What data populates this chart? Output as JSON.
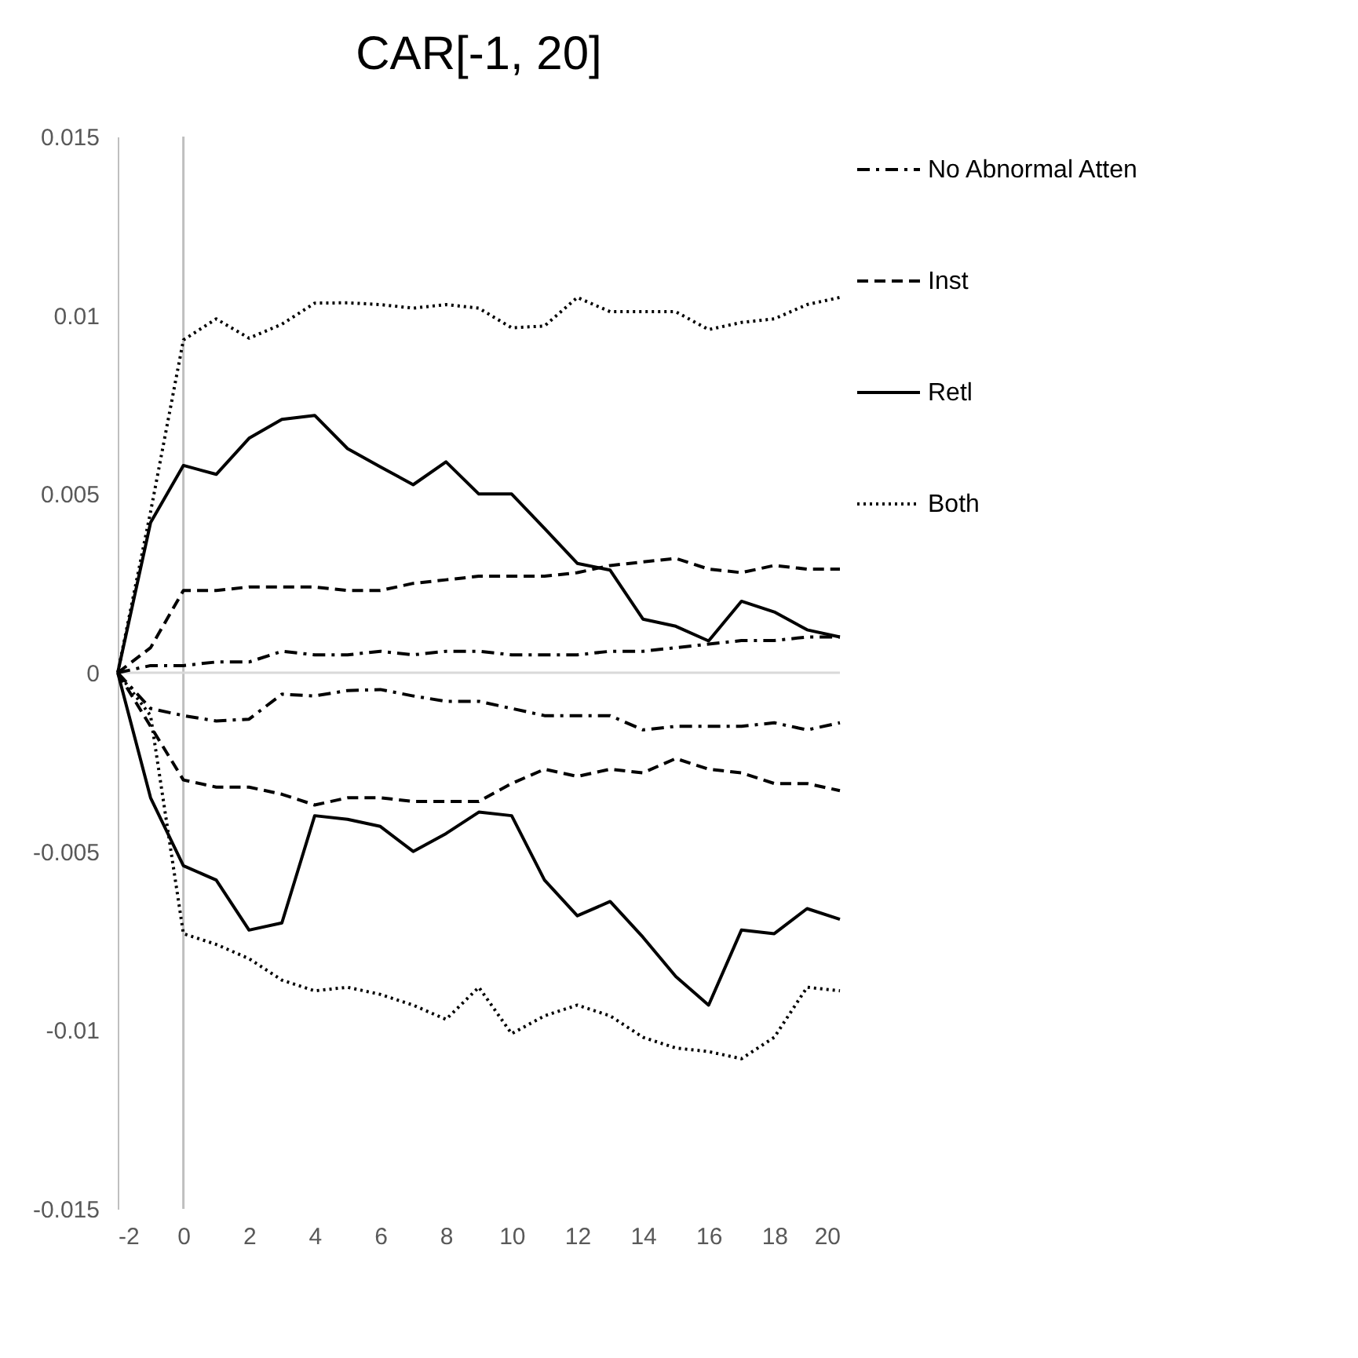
{
  "chart_data": {
    "type": "line",
    "title": "CAR[-1, 20]",
    "x": [
      -2,
      -1,
      0,
      1,
      2,
      3,
      4,
      5,
      6,
      7,
      8,
      9,
      10,
      11,
      12,
      13,
      14,
      15,
      16,
      17,
      18,
      19,
      20
    ],
    "xlim": [
      -2,
      20
    ],
    "xticks": [
      -2,
      0,
      2,
      4,
      6,
      8,
      10,
      12,
      14,
      16,
      18,
      20
    ],
    "ylim": [
      -0.015,
      0.015
    ],
    "yticks": [
      -0.015,
      -0.01,
      -0.005,
      0,
      0.005,
      0.01,
      0.015
    ],
    "grid": false,
    "legend": "right",
    "marker": "none",
    "ref_lines": [
      {
        "axis": "x",
        "value": 0,
        "color": "#bfbfbf"
      },
      {
        "axis": "y",
        "value": 0,
        "color": "#d9d9d9"
      }
    ],
    "series": [
      {
        "name": "No Abnormal Atten",
        "color": "#000000",
        "line_style": "dashdot",
        "values": [
          0,
          0.0002,
          0.0002,
          0.0003,
          0.0003,
          0.0006,
          0.0005,
          0.0005,
          0.0006,
          0.0005,
          0.0006,
          0.0006,
          0.0005,
          0.0005,
          0.0005,
          0.0006,
          0.0006,
          0.0007,
          0.0008,
          0.0009,
          0.0009,
          0.001,
          0.001
        ]
      },
      {
        "color": "#000000",
        "line_style": "dashdot",
        "values": [
          0,
          -0.001,
          -0.0012,
          -0.00135,
          -0.0013,
          -0.0006,
          -0.00065,
          -0.0005,
          -0.00047,
          -0.00065,
          -0.0008,
          -0.0008,
          -0.001,
          -0.0012,
          -0.0012,
          -0.0012,
          -0.0016,
          -0.0015,
          -0.0015,
          -0.0015,
          -0.0014,
          -0.0016,
          -0.0014
        ]
      },
      {
        "name": "Inst",
        "color": "#000000",
        "line_style": "dashed",
        "values": [
          0,
          0.0007,
          0.0023,
          0.0023,
          0.0024,
          0.0024,
          0.0024,
          0.0023,
          0.0023,
          0.0025,
          0.0026,
          0.0027,
          0.0027,
          0.0027,
          0.0028,
          0.003,
          0.0031,
          0.0032,
          0.0029,
          0.0028,
          0.003,
          0.0029,
          0.0029
        ]
      },
      {
        "color": "#000000",
        "line_style": "dashed",
        "values": [
          0,
          -0.0015,
          -0.003,
          -0.0032,
          -0.0032,
          -0.0034,
          -0.0037,
          -0.0035,
          -0.0035,
          -0.0036,
          -0.0036,
          -0.0036,
          -0.0031,
          -0.0027,
          -0.0029,
          -0.0027,
          -0.0028,
          -0.0024,
          -0.0027,
          -0.0028,
          -0.0031,
          -0.0031,
          -0.0033
        ]
      },
      {
        "name": "Retl",
        "color": "#000000",
        "line_style": "solid",
        "values": [
          0,
          0.0042,
          0.0058,
          0.00555,
          0.00656,
          0.00709,
          0.0072,
          0.00627,
          0.00576,
          0.00526,
          0.0059,
          0.005,
          0.005,
          0.00404,
          0.00306,
          0.00287,
          0.0015,
          0.0013,
          0.00089,
          0.002,
          0.0017,
          0.0012,
          0.001
        ]
      },
      {
        "color": "#000000",
        "line_style": "solid",
        "values": [
          0,
          -0.0035,
          -0.0054,
          -0.0058,
          -0.0072,
          -0.007,
          -0.004,
          -0.0041,
          -0.0043,
          -0.005,
          -0.0045,
          -0.0039,
          -0.004,
          -0.0058,
          -0.0068,
          -0.0064,
          -0.0074,
          -0.0085,
          -0.0093,
          -0.0072,
          -0.0073,
          -0.0066,
          -0.0069
        ]
      },
      {
        "name": "Both",
        "color": "#000000",
        "line_style": "dotted",
        "values": [
          0,
          0.0045,
          0.00931,
          0.0099,
          0.00936,
          0.00975,
          0.01034,
          0.01035,
          0.0103,
          0.0102,
          0.0103,
          0.0102,
          0.00965,
          0.0097,
          0.0105,
          0.0101,
          0.0101,
          0.0101,
          0.0096,
          0.0098,
          0.0099,
          0.0103,
          0.0105
        ]
      },
      {
        "color": "#000000",
        "line_style": "dotted",
        "values": [
          0,
          -0.0012,
          -0.0073,
          -0.0076,
          -0.008,
          -0.0086,
          -0.0089,
          -0.0088,
          -0.009,
          -0.0093,
          -0.0097,
          -0.0088,
          -0.0101,
          -0.0096,
          -0.0093,
          -0.0096,
          -0.0102,
          -0.0105,
          -0.0106,
          -0.0108,
          -0.0102,
          -0.0088,
          -0.0089
        ]
      }
    ]
  }
}
